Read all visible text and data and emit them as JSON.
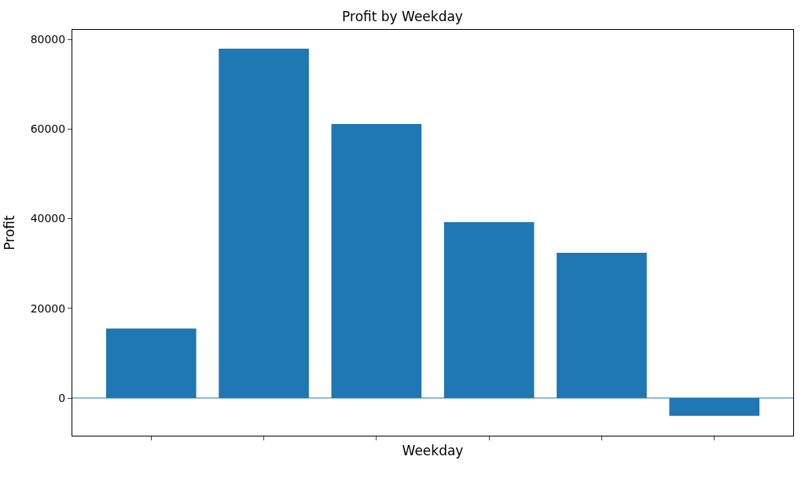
{
  "chart_data": {
    "type": "bar",
    "title": "Profit by Weekday",
    "xlabel": "Weekday",
    "ylabel": "Profit",
    "categories": [
      null,
      null,
      null,
      null,
      null,
      null
    ],
    "values": [
      15500,
      77900,
      61100,
      39200,
      32400,
      -4000
    ],
    "color": "#1f77b4",
    "ylim": [
      -8400,
      82100
    ],
    "yticks": [
      0,
      20000,
      40000,
      60000,
      80000
    ],
    "ref_lines": [
      {
        "axis": "y",
        "value": 0,
        "color": "#1f77b4"
      }
    ]
  }
}
